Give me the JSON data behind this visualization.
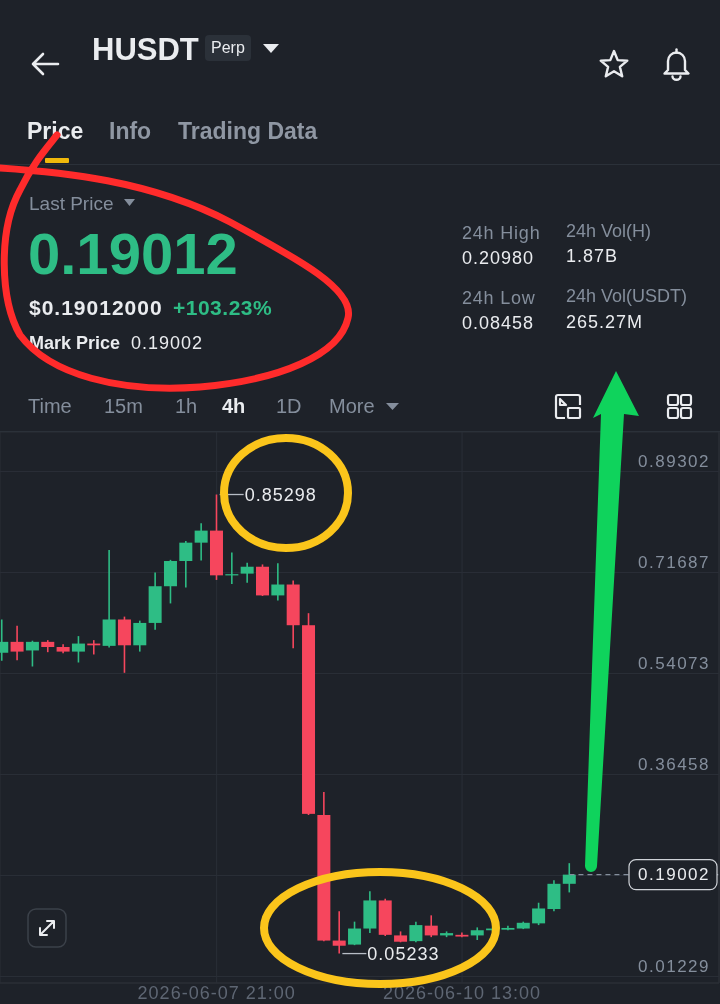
{
  "chart_data": {
    "type": "candlestick",
    "title": "HUSDT",
    "x": [
      "2026-06-05T13:00",
      "2026-06-05T17:00",
      "2026-06-05T21:00",
      "2026-06-06T01:00",
      "2026-06-06T05:00",
      "2026-06-06T09:00",
      "2026-06-06T13:00",
      "2026-06-06T17:00",
      "2026-06-06T21:00",
      "2026-06-07T01:00",
      "2026-06-07T05:00",
      "2026-06-07T09:00",
      "2026-06-07T13:00",
      "2026-06-07T17:00",
      "2026-06-07T21:00",
      "2026-06-08T01:00",
      "2026-06-08T05:00",
      "2026-06-08T09:00",
      "2026-06-08T13:00",
      "2026-06-08T17:00",
      "2026-06-08T21:00",
      "2026-06-09T01:00",
      "2026-06-09T05:00",
      "2026-06-09T09:00",
      "2026-06-09T13:00",
      "2026-06-09T17:00",
      "2026-06-09T21:00",
      "2026-06-10T01:00",
      "2026-06-10T05:00",
      "2026-06-10T09:00",
      "2026-06-10T13:00",
      "2026-06-10T17:00",
      "2026-06-10T21:00",
      "2026-06-11T01:00",
      "2026-06-11T05:00",
      "2026-06-11T09:00",
      "2026-06-11T13:00",
      "2026-06-11T17:00"
    ],
    "ohlc": [
      [
        0.577,
        0.635,
        0.563,
        0.596
      ],
      [
        0.596,
        0.624,
        0.564,
        0.579
      ],
      [
        0.581,
        0.598,
        0.553,
        0.596
      ],
      [
        0.596,
        0.599,
        0.578,
        0.587
      ],
      [
        0.587,
        0.592,
        0.576,
        0.579
      ],
      [
        0.579,
        0.606,
        0.56,
        0.593
      ],
      [
        0.593,
        0.599,
        0.574,
        0.59
      ],
      [
        0.589,
        0.756,
        0.586,
        0.635
      ],
      [
        0.635,
        0.64,
        0.542,
        0.59
      ],
      [
        0.59,
        0.633,
        0.579,
        0.629
      ],
      [
        0.629,
        0.717,
        0.617,
        0.693
      ],
      [
        0.693,
        0.739,
        0.663,
        0.737
      ],
      [
        0.737,
        0.772,
        0.691,
        0.769
      ],
      [
        0.769,
        0.803,
        0.738,
        0.79
      ],
      [
        0.79,
        0.85298,
        0.704,
        0.712
      ],
      [
        0.712,
        0.752,
        0.697,
        0.714
      ],
      [
        0.715,
        0.734,
        0.699,
        0.727
      ],
      [
        0.727,
        0.731,
        0.676,
        0.677
      ],
      [
        0.677,
        0.733,
        0.668,
        0.696
      ],
      [
        0.696,
        0.703,
        0.585,
        0.625
      ],
      [
        0.625,
        0.646,
        0.294,
        0.296
      ],
      [
        0.294,
        0.334,
        0.074,
        0.075
      ],
      [
        0.075,
        0.126,
        0.05233,
        0.066
      ],
      [
        0.068,
        0.108,
        0.067,
        0.096
      ],
      [
        0.096,
        0.161,
        0.088,
        0.145
      ],
      [
        0.145,
        0.148,
        0.083,
        0.085
      ],
      [
        0.084,
        0.091,
        0.072,
        0.073
      ],
      [
        0.074,
        0.108,
        0.072,
        0.102
      ],
      [
        0.101,
        0.119,
        0.081,
        0.084
      ],
      [
        0.084,
        0.091,
        0.081,
        0.088
      ],
      [
        0.085,
        0.089,
        0.081,
        0.082
      ],
      [
        0.084,
        0.098,
        0.076,
        0.093
      ],
      [
        0.093,
        0.099,
        0.091,
        0.096
      ],
      [
        0.094,
        0.101,
        0.093,
        0.097
      ],
      [
        0.096,
        0.108,
        0.095,
        0.106
      ],
      [
        0.105,
        0.141,
        0.102,
        0.131
      ],
      [
        0.13,
        0.18,
        0.126,
        0.174
      ],
      [
        0.174,
        0.21,
        0.159,
        0.19
      ]
    ],
    "colors": [
      "#2ebd85",
      "#f6465d",
      "#2ebd85",
      "#f6465d",
      "#f6465d",
      "#2ebd85",
      "#f6465d",
      "#2ebd85",
      "#f6465d",
      "#2ebd85",
      "#2ebd85",
      "#2ebd85",
      "#2ebd85",
      "#2ebd85",
      "#f6465d",
      "#2ebd85",
      "#2ebd85",
      "#f6465d",
      "#2ebd85",
      "#f6465d",
      "#f6465d",
      "#f6465d",
      "#f6465d",
      "#2ebd85",
      "#2ebd85",
      "#f6465d",
      "#f6465d",
      "#2ebd85",
      "#f6465d",
      "#2ebd85",
      "#f6465d",
      "#2ebd85",
      "#2ebd85",
      "#2ebd85",
      "#2ebd85",
      "#2ebd85",
      "#2ebd85",
      "#2ebd85"
    ],
    "xlim": [
      "2026-06-05T12:30",
      "2026-06-13T08:00"
    ],
    "xticks": [
      {
        "value": "2026-06-07T21:00",
        "label": "2026-06-07 21:00"
      },
      {
        "value": "2026-06-10T13:00",
        "label": "2026-06-10 13:00"
      }
    ],
    "ylim": [
      0.001,
      0.962
    ],
    "yticks": [
      0.01229,
      {
        "value": 0.18844,
        "label": null
      },
      0.36458,
      0.54073,
      0.71687,
      0.89302
    ],
    "grid": true,
    "ref_lines": [
      {
        "axis": "y",
        "value": 0.19002,
        "label": "0.19002",
        "line_style": "dashed",
        "color": "#848e9c"
      }
    ],
    "annotations": [
      "Perp",
      "Price",
      "Info",
      "Trading Data",
      "Last Price",
      "0.19012",
      "$0.19012000",
      "+103.23%",
      "Mark Price",
      "0.19002",
      "24h High",
      "0.20980",
      "24h Low",
      "0.08458",
      "24h Vol(H)",
      "1.87B",
      "24h Vol(USDT)",
      "265.27M",
      "Time",
      "15m",
      "1h",
      "4h",
      "1D",
      "More",
      {
        "text": "0.85298",
        "x": "2026-06-07T21:00",
        "y": 0.85298
      },
      {
        "text": "0.05233",
        "x": "2026-06-09T05:00",
        "y": 0.05233
      }
    ]
  }
}
